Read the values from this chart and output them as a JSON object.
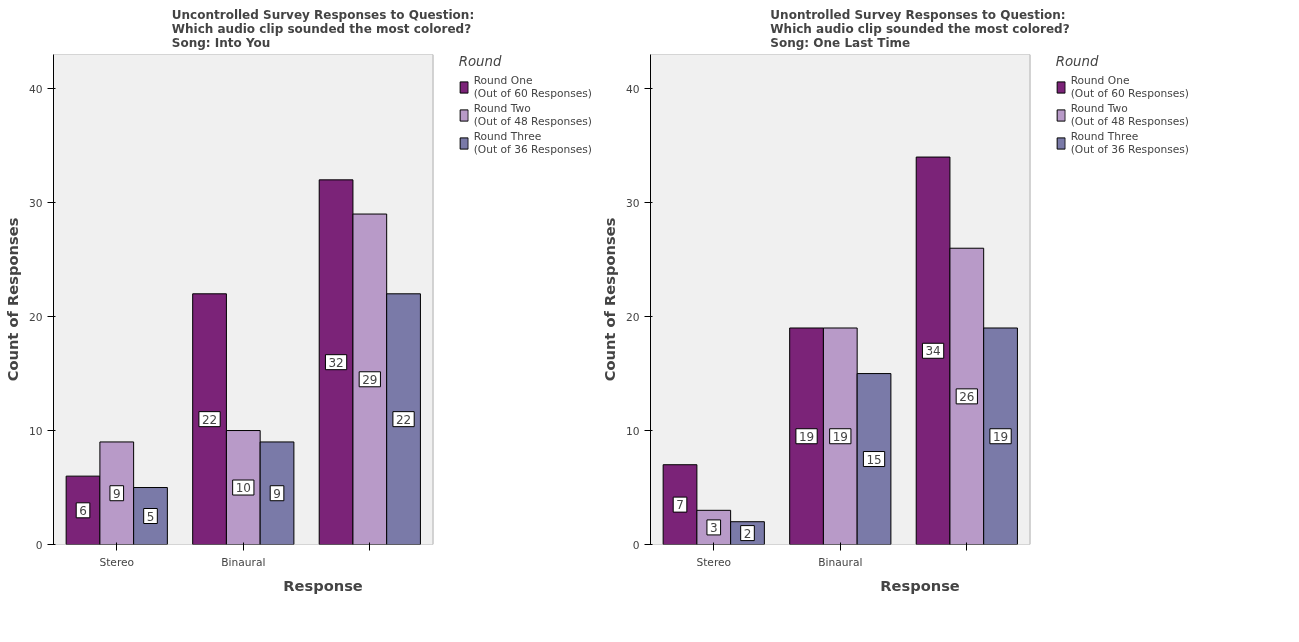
{
  "chart_data": [
    {
      "type": "bar",
      "title": "Uncontrolled Survey Responses to Question:\nWhich audio clip sounded the most colored?\nSong: Into You",
      "xlabel": "Response",
      "ylabel": "Count of Responses",
      "legend_title": "Round",
      "categories": [
        "Stereo",
        "Binaural",
        null
      ],
      "series": [
        {
          "name": "Round One\n(Out of 60 Responses)",
          "color": "#7b2378",
          "values": [
            6,
            22,
            32
          ]
        },
        {
          "name": "Round Two\n(Out of 48 Responses)",
          "color": "#b89ac8",
          "values": [
            9,
            10,
            29
          ]
        },
        {
          "name": "Round Three\n(Out of 36 Responses)",
          "color": "#7a7aa8",
          "values": [
            5,
            9,
            22
          ]
        }
      ],
      "ylim": [
        0,
        43
      ],
      "yticks": [
        0,
        10,
        20,
        30,
        40
      ],
      "grid": false,
      "legend": "right",
      "data_labels": true
    },
    {
      "type": "bar",
      "title": "Unontrolled Survey Responses to Question:\nWhich audio clip sounded the most colored?\nSong: One Last Time",
      "xlabel": "Response",
      "ylabel": "Count of Responses",
      "legend_title": "Round",
      "categories": [
        "Stereo",
        "Binaural",
        null
      ],
      "series": [
        {
          "name": "Round One\n(Out of 60 Responses)",
          "color": "#7b2378",
          "values": [
            7,
            19,
            34
          ]
        },
        {
          "name": "Round Two\n(Out of 48 Responses)",
          "color": "#b89ac8",
          "values": [
            3,
            19,
            26
          ]
        },
        {
          "name": "Round Three\n(Out of 36 Responses)",
          "color": "#7a7aa8",
          "values": [
            2,
            15,
            19
          ]
        }
      ],
      "ylim": [
        0,
        43
      ],
      "yticks": [
        0,
        10,
        20,
        30,
        40
      ],
      "grid": false,
      "legend": "right",
      "data_labels": true
    }
  ]
}
